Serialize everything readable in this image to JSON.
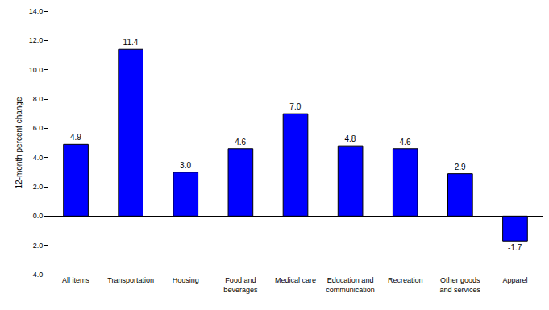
{
  "chart_data": {
    "type": "bar",
    "y_label": "12-month percent change",
    "categories": [
      "All items",
      "Transportation",
      "Housing",
      "Food and beverages",
      "Medical care",
      "Education and communication",
      "Recreation",
      "Other goods and services",
      "Apparel"
    ],
    "values": [
      4.9,
      11.4,
      3.0,
      4.6,
      7.0,
      4.8,
      4.6,
      2.9,
      -1.7
    ],
    "value_labels": [
      "4.9",
      "11.4",
      "3.0",
      "4.6",
      "7.0",
      "4.8",
      "4.6",
      "2.9",
      "-1.7"
    ],
    "color": "#0000ff",
    "ylim": [
      -4,
      14
    ],
    "yticks": [
      {
        "value": -4,
        "label": "-4.0"
      },
      {
        "value": -2,
        "label": "-2.0"
      },
      {
        "value": 0,
        "label": "0.0"
      },
      {
        "value": 2,
        "label": "2.0"
      },
      {
        "value": 4,
        "label": "4.0"
      },
      {
        "value": 6,
        "label": "6.0"
      },
      {
        "value": 8,
        "label": "8.0"
      },
      {
        "value": 10,
        "label": "10.0"
      },
      {
        "value": 12,
        "label": "12.0"
      },
      {
        "value": 14,
        "label": "14.0"
      }
    ],
    "grid": false,
    "data_labels": true
  }
}
